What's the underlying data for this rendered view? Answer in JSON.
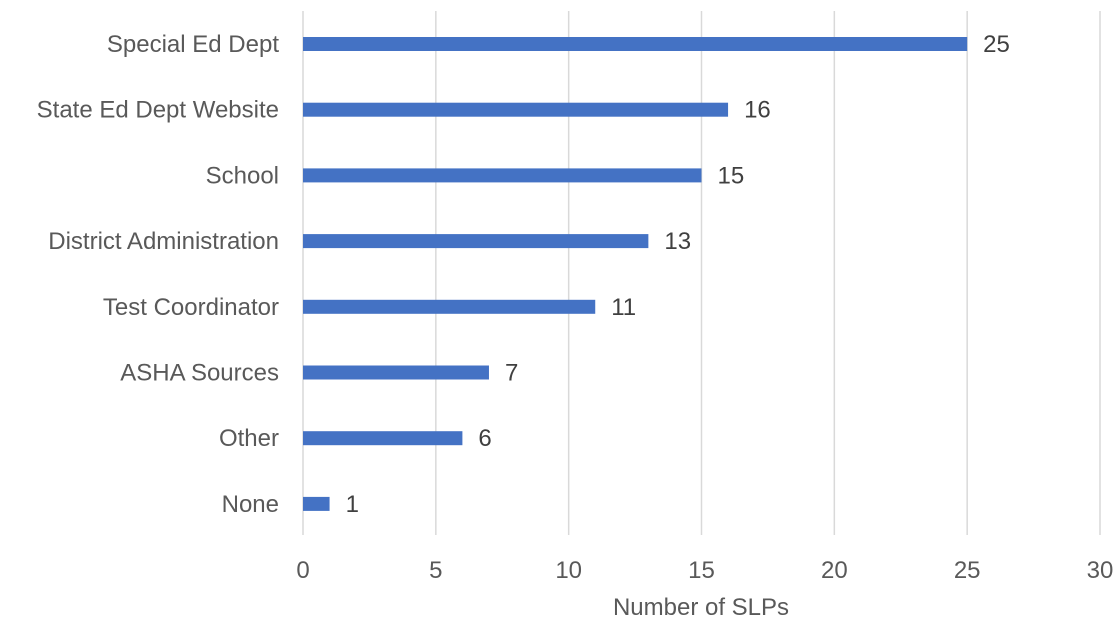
{
  "chart_data": {
    "type": "bar",
    "orientation": "horizontal",
    "categories": [
      "Special Ed Dept",
      "State Ed Dept Website",
      "School",
      "District Administration",
      "Test Coordinator",
      "ASHA Sources",
      "Other",
      "None"
    ],
    "values": [
      25,
      16,
      15,
      13,
      11,
      7,
      6,
      1
    ],
    "title": "",
    "xlabel": "Number of SLPs",
    "ylabel": "",
    "xlim": [
      0,
      30
    ],
    "x_ticks": [
      0,
      5,
      10,
      15,
      20,
      25,
      30
    ],
    "grid": "vertical",
    "legend": "none",
    "data_labels": true,
    "colors": {
      "bar": "#4472C4",
      "grid": "#d9d9d9",
      "text": "#595959"
    }
  }
}
